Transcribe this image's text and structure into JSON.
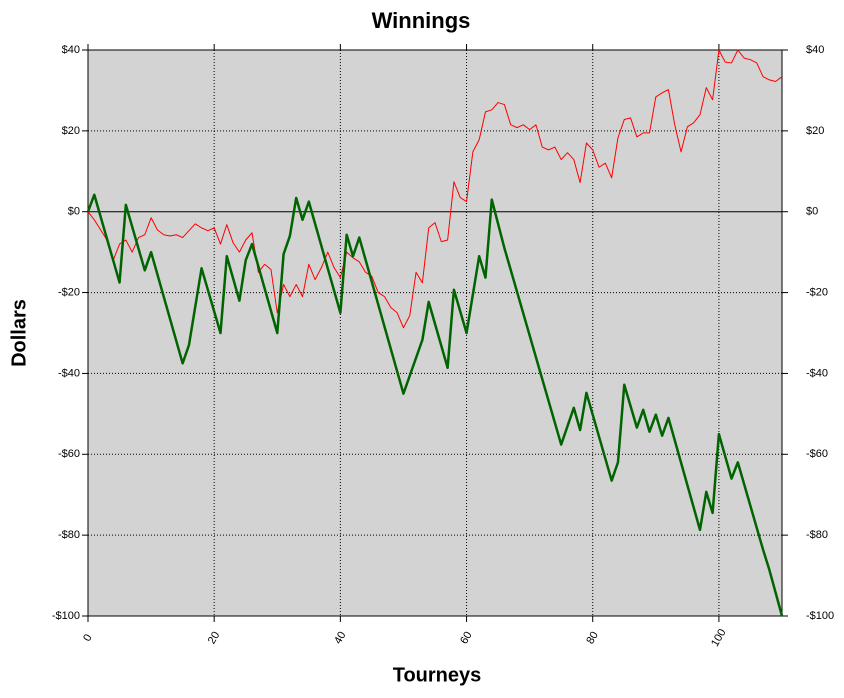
{
  "chart_data": {
    "type": "line",
    "title": "Winnings",
    "x_label": "Tourneys",
    "y_label": "Dollars",
    "xlim": [
      0,
      110
    ],
    "xticks": [
      0,
      20,
      40,
      60,
      80,
      100
    ],
    "ylim": [
      -100,
      40
    ],
    "yticks": [
      {
        "value": 40,
        "label": "$40"
      },
      {
        "value": 20,
        "label": "$20"
      },
      {
        "value": 0,
        "label": "$0"
      },
      {
        "value": -20,
        "label": "-$20"
      },
      {
        "value": -40,
        "label": "-$40"
      },
      {
        "value": -60,
        "label": "-$60"
      },
      {
        "value": -80,
        "label": "-$80"
      },
      {
        "value": -100,
        "label": "-$100"
      }
    ],
    "y2lim": [
      -100,
      40
    ],
    "y2ticks": [
      {
        "value": 40,
        "label": "$40"
      },
      {
        "value": 20,
        "label": "$20"
      },
      {
        "value": 0,
        "label": "$0"
      },
      {
        "value": -20,
        "label": "-$20"
      },
      {
        "value": -40,
        "label": "-$40"
      },
      {
        "value": -60,
        "label": "-$60"
      },
      {
        "value": -80,
        "label": "-$80"
      },
      {
        "value": -100,
        "label": "-$100"
      }
    ],
    "grid": true,
    "series": [
      {
        "color": "#ff0000",
        "width": 1,
        "x": [
          0,
          1,
          2,
          3,
          4,
          5,
          6,
          7,
          8,
          9,
          10,
          11,
          12,
          13,
          14,
          15,
          16,
          17,
          18,
          19,
          20,
          21,
          22,
          23,
          24,
          25,
          26,
          27,
          28,
          29,
          30,
          31,
          32,
          33,
          34,
          35,
          36,
          37,
          38,
          39,
          40,
          41,
          42,
          43,
          44,
          45,
          46,
          47,
          48,
          49,
          50,
          51,
          52,
          53,
          54,
          55,
          56,
          57,
          58,
          59,
          60,
          61,
          62,
          63,
          64,
          65,
          66,
          67,
          68,
          69,
          70,
          71,
          72,
          73,
          74,
          75,
          76,
          77,
          78,
          79,
          80,
          81,
          82,
          83,
          84,
          85,
          86,
          87,
          88,
          89,
          90,
          91,
          92,
          93,
          94,
          95,
          96,
          97,
          98,
          99,
          100,
          101,
          102,
          103,
          104,
          105,
          106,
          107,
          108,
          109,
          110
        ],
        "values": [
          0,
          -2,
          -4.5,
          -7,
          -12,
          -8,
          -7,
          -10,
          -6.4,
          -5.7,
          -1.5,
          -4.5,
          -5.7,
          -6,
          -5.7,
          -6.4,
          -4.7,
          -3,
          -4,
          -4.7,
          -4,
          -8,
          -3.2,
          -7.7,
          -10,
          -7,
          -5.2,
          -15,
          -13,
          -14.3,
          -25,
          -18,
          -21,
          -18,
          -21,
          -13,
          -16.8,
          -13.8,
          -10,
          -13.8,
          -16.3,
          -10,
          -11.4,
          -12.4,
          -15,
          -16,
          -20,
          -21,
          -23.7,
          -25,
          -28.7,
          -25.7,
          -15,
          -17.6,
          -4,
          -2.7,
          -7.4,
          -7,
          7.4,
          3.5,
          2.5,
          14.8,
          17.8,
          24.7,
          25.2,
          27,
          26.5,
          21.5,
          20.8,
          21.5,
          20.3,
          21.5,
          16,
          15.3,
          16,
          12.9,
          14.6,
          12.9,
          7.2,
          17,
          15.3,
          11,
          12,
          8.4,
          18.3,
          22.8,
          23.2,
          18.5,
          19.5,
          19.5,
          28.4,
          29.4,
          30.2,
          21.5,
          14.8,
          21,
          22,
          24,
          30.7,
          27.7,
          40,
          37,
          36.8,
          40,
          38,
          37.6,
          36.8,
          33.4,
          32.6,
          32.2,
          33.4
        ]
      },
      {
        "color": "#006400",
        "width": 2.5,
        "x": [
          0,
          1,
          5,
          6,
          9,
          10,
          15,
          16,
          18,
          21,
          22,
          24,
          25,
          26,
          30,
          31,
          32,
          33,
          34,
          35,
          40,
          41,
          42,
          43,
          50,
          53,
          54,
          57,
          58,
          60,
          62,
          63,
          64,
          66,
          75,
          77,
          78,
          79,
          83,
          84,
          85,
          87,
          88,
          89,
          90,
          91,
          92,
          97,
          98,
          99,
          100,
          102,
          103,
          107,
          108,
          110
        ],
        "values": [
          0,
          4.2,
          -17.5,
          1.7,
          -14.5,
          -10,
          -37.5,
          -33,
          -14,
          -30,
          -11,
          -22,
          -12,
          -8,
          -30,
          -10.5,
          -6,
          3.4,
          -2,
          2.5,
          -25,
          -5.7,
          -11,
          -6.4,
          -45,
          -31.7,
          -22.3,
          -38.6,
          -19.3,
          -30,
          -11,
          -16.3,
          3,
          -9,
          -57.6,
          -48.5,
          -54,
          -44.8,
          -66.5,
          -62,
          -42.8,
          -53.4,
          -49,
          -54.4,
          -50.2,
          -55.4,
          -51,
          -78.7,
          -69.3,
          -74.5,
          -55,
          -66,
          -62,
          -83.6,
          -88.6,
          -100
        ]
      }
    ]
  }
}
